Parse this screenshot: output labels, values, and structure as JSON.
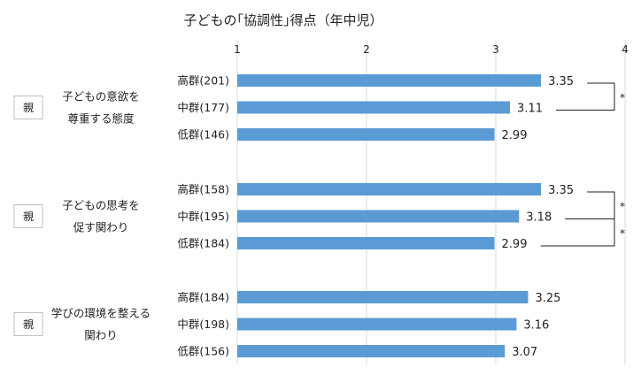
{
  "chart_data": {
    "type": "bar",
    "orientation": "horizontal",
    "title": "子どもの｢協調性｣得点（年中児）",
    "xlim": [
      1,
      4
    ],
    "xticks": [
      "1",
      "2",
      "3",
      "4"
    ],
    "grid": "vertical",
    "bar_color": "#5B9BD5",
    "groups": [
      {
        "badge": "親",
        "label_lines": [
          "子どもの意欲を",
          "尊重する態度"
        ],
        "categories": [
          "高群(201)",
          "中群(177)",
          "低群(146)"
        ],
        "values": [
          3.35,
          3.11,
          2.99
        ],
        "value_labels": [
          "3.35",
          "3.11",
          "2.99"
        ],
        "significance": [
          {
            "from": 0,
            "to": 1,
            "mark": "*"
          }
        ]
      },
      {
        "badge": "親",
        "label_lines": [
          "子どもの思考を",
          "促す関わり"
        ],
        "categories": [
          "高群(158)",
          "中群(195)",
          "低群(184)"
        ],
        "values": [
          3.35,
          3.18,
          2.99
        ],
        "value_labels": [
          "3.35",
          "3.18",
          "2.99"
        ],
        "significance": [
          {
            "from": 0,
            "to": 1,
            "mark": "*"
          },
          {
            "from": 1,
            "to": 2,
            "mark": "*"
          }
        ]
      },
      {
        "badge": "親",
        "label_lines": [
          "学びの環境を整える",
          "関わり"
        ],
        "categories": [
          "高群(184)",
          "中群(198)",
          "低群(156)"
        ],
        "values": [
          3.25,
          3.16,
          3.07
        ],
        "value_labels": [
          "3.25",
          "3.16",
          "3.07"
        ],
        "significance": []
      }
    ]
  }
}
